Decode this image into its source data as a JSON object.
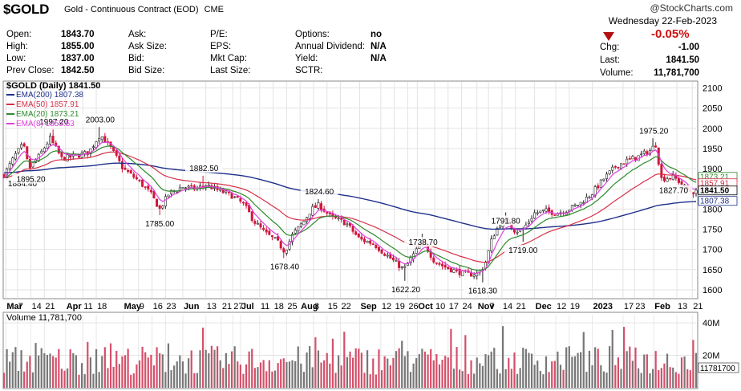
{
  "header": {
    "symbol": "$GOLD",
    "description": "Gold - Continuous Contract (EOD)",
    "exchange": "CME",
    "copyright": "@StockCharts.com",
    "date": "Wednesday  22-Feb-2023",
    "fields": [
      {
        "label": "Open:",
        "value": "1843.70"
      },
      {
        "label": "High:",
        "value": "1855.00"
      },
      {
        "label": "Low:",
        "value": "1837.00"
      },
      {
        "label": "Prev Close:",
        "value": "1842.50"
      },
      {
        "label": "Ask:",
        "value": ""
      },
      {
        "label": "Ask Size:",
        "value": ""
      },
      {
        "label": "Bid:",
        "value": ""
      },
      {
        "label": "Bid Size:",
        "value": ""
      },
      {
        "label": "P/E:",
        "value": ""
      },
      {
        "label": "EPS:",
        "value": ""
      },
      {
        "label": "Mkt Cap:",
        "value": ""
      },
      {
        "label": "Last Size:",
        "value": ""
      },
      {
        "label": "Options:",
        "value": "no"
      },
      {
        "label": "Annual Dividend:",
        "value": "N/A"
      },
      {
        "label": "Yield:",
        "value": "N/A"
      },
      {
        "label": "SCTR:",
        "value": ""
      }
    ],
    "change_pct": "-0.05%",
    "change_label": "Chg:",
    "change_value": "-1.00",
    "last_label": "Last:",
    "last_value": "1841.50",
    "volume_label": "Volume:",
    "volume_value": "11,781,700"
  },
  "chart_data": {
    "type": "candlestick",
    "price_panel_label": "$GOLD (Daily) 1841.50",
    "legend": [
      {
        "name": "EMA(200) 1807.38",
        "color": "#1f2f8a"
      },
      {
        "name": "EMA(50) 1857.91",
        "color": "#d63048"
      },
      {
        "name": "EMA(20) 1873.21",
        "color": "#2f8a2f"
      },
      {
        "name": "EMA(8) 1855.53",
        "color": "#e040e0"
      }
    ],
    "y_ticks": [
      1600,
      1650,
      1700,
      1750,
      1800,
      1850,
      1900,
      1950,
      2000,
      2050,
      2100
    ],
    "ylim": [
      1580,
      2115
    ],
    "x_labels": [
      {
        "label": "Mar",
        "bold": true,
        "day": 1
      },
      {
        "label": "7",
        "day": 7
      },
      {
        "label": "14",
        "day": 14
      },
      {
        "label": "21",
        "day": 21
      },
      {
        "label": "Apr",
        "bold": true,
        "day": 32
      },
      {
        "label": "11",
        "day": 41
      },
      {
        "label": "18",
        "day": 48
      },
      {
        "label": "May",
        "bold": true,
        "day": 62
      },
      {
        "label": "9",
        "day": 70
      },
      {
        "label": "16",
        "day": 77
      },
      {
        "label": "23",
        "day": 84
      },
      {
        "label": "Jun",
        "bold": true,
        "day": 93
      },
      {
        "label": "13",
        "day": 105
      },
      {
        "label": "21",
        "day": 113
      },
      {
        "label": "27",
        "day": 119
      },
      {
        "label": "Jul",
        "bold": true,
        "day": 123
      },
      {
        "label": "11",
        "day": 133
      },
      {
        "label": "18",
        "day": 140
      },
      {
        "label": "25",
        "day": 147
      },
      {
        "label": "Aug",
        "bold": true,
        "day": 154
      },
      {
        "label": "8",
        "day": 161
      },
      {
        "label": "15",
        "day": 168
      },
      {
        "label": "22",
        "day": 175
      },
      {
        "label": "Sep",
        "bold": true,
        "day": 185
      },
      {
        "label": "12",
        "day": 196
      },
      {
        "label": "19",
        "day": 203
      },
      {
        "label": "26",
        "day": 210
      },
      {
        "label": "Oct",
        "bold": true,
        "day": 215
      },
      {
        "label": "10",
        "day": 224
      },
      {
        "label": "17",
        "day": 231
      },
      {
        "label": "24",
        "day": 238
      },
      {
        "label": "Nov",
        "bold": true,
        "day": 246
      },
      {
        "label": "7",
        "day": 252
      },
      {
        "label": "14",
        "day": 259
      },
      {
        "label": "21",
        "day": 266
      },
      {
        "label": "Dec",
        "bold": true,
        "day": 276
      },
      {
        "label": "12",
        "day": 287
      },
      {
        "label": "19",
        "day": 294
      },
      {
        "label": "2023",
        "bold": true,
        "day": 306
      },
      {
        "label": "17",
        "day": 322
      },
      {
        "label": "23",
        "day": 328
      },
      {
        "label": "Feb",
        "bold": true,
        "day": 338
      },
      {
        "label": "13",
        "day": 350
      },
      {
        "label": "21",
        "day": 358
      }
    ],
    "annotations": [
      {
        "text": "1884.40",
        "day": 0,
        "price": 1884.4
      },
      {
        "text": "1895.20",
        "day": 14,
        "price": 1895.2
      },
      {
        "text": "1997.20",
        "day": 26,
        "price": 1997.2
      },
      {
        "text": "2003.00",
        "day": 50,
        "price": 2003.0
      },
      {
        "text": "1785.00",
        "day": 81,
        "price": 1785.0
      },
      {
        "text": "1882.50",
        "day": 104,
        "price": 1882.5
      },
      {
        "text": "1678.40",
        "day": 146,
        "price": 1678.4
      },
      {
        "text": "1824.60",
        "day": 164,
        "price": 1824.6
      },
      {
        "text": "1738.70",
        "day": 218,
        "price": 1738.7
      },
      {
        "text": "1622.20",
        "day": 209,
        "price": 1622.2
      },
      {
        "text": "1618.30",
        "day": 249,
        "price": 1618.3
      },
      {
        "text": "1791.80",
        "day": 261,
        "price": 1791.8
      },
      {
        "text": "1719.00",
        "day": 270,
        "price": 1719.0
      },
      {
        "text": "1975.20",
        "day": 338,
        "price": 1975.2
      },
      {
        "text": "1827.70",
        "day": 358,
        "price": 1827.7
      }
    ],
    "right_labels": [
      {
        "text": "1873.21",
        "price": 1873.21,
        "color": "#2f8a2f"
      },
      {
        "text": "1857.91",
        "price": 1857.91,
        "color": "#d63048"
      },
      {
        "text": "1841.50",
        "price": 1841.5,
        "color": "#000000",
        "bold": true
      },
      {
        "text": "1807.38",
        "price": 1807.38,
        "color": "#1f2f8a"
      }
    ],
    "price_keypoints": [
      [
        0,
        1884
      ],
      [
        6,
        1935
      ],
      [
        10,
        1960
      ],
      [
        13,
        1900
      ],
      [
        18,
        1930
      ],
      [
        24,
        1975
      ],
      [
        30,
        1925
      ],
      [
        36,
        1930
      ],
      [
        44,
        1940
      ],
      [
        50,
        1985
      ],
      [
        55,
        1955
      ],
      [
        62,
        1900
      ],
      [
        70,
        1870
      ],
      [
        76,
        1840
      ],
      [
        81,
        1800
      ],
      [
        86,
        1840
      ],
      [
        93,
        1855
      ],
      [
        100,
        1850
      ],
      [
        105,
        1860
      ],
      [
        112,
        1845
      ],
      [
        118,
        1835
      ],
      [
        125,
        1810
      ],
      [
        130,
        1770
      ],
      [
        136,
        1740
      ],
      [
        142,
        1720
      ],
      [
        146,
        1695
      ],
      [
        150,
        1735
      ],
      [
        156,
        1770
      ],
      [
        160,
        1800
      ],
      [
        164,
        1810
      ],
      [
        170,
        1780
      ],
      [
        178,
        1765
      ],
      [
        185,
        1725
      ],
      [
        192,
        1715
      ],
      [
        198,
        1690
      ],
      [
        203,
        1670
      ],
      [
        208,
        1650
      ],
      [
        212,
        1680
      ],
      [
        218,
        1720
      ],
      [
        224,
        1670
      ],
      [
        230,
        1655
      ],
      [
        236,
        1645
      ],
      [
        241,
        1638
      ],
      [
        246,
        1640
      ],
      [
        250,
        1660
      ],
      [
        254,
        1730
      ],
      [
        258,
        1765
      ],
      [
        262,
        1770
      ],
      [
        266,
        1745
      ],
      [
        270,
        1750
      ],
      [
        276,
        1790
      ],
      [
        282,
        1795
      ],
      [
        288,
        1790
      ],
      [
        294,
        1800
      ],
      [
        300,
        1815
      ],
      [
        306,
        1840
      ],
      [
        312,
        1875
      ],
      [
        318,
        1905
      ],
      [
        324,
        1920
      ],
      [
        330,
        1930
      ],
      [
        336,
        1945
      ],
      [
        339,
        1960
      ],
      [
        342,
        1875
      ],
      [
        348,
        1880
      ],
      [
        352,
        1865
      ],
      [
        356,
        1845
      ],
      [
        360,
        1841
      ]
    ],
    "volume_panel_label": "Volume 11,781,700",
    "volume_ticks": [
      {
        "label": "40M",
        "v": 40
      },
      {
        "label": "20M",
        "v": 20
      }
    ],
    "volume_last_label": "11781700",
    "volume_max": 45
  }
}
